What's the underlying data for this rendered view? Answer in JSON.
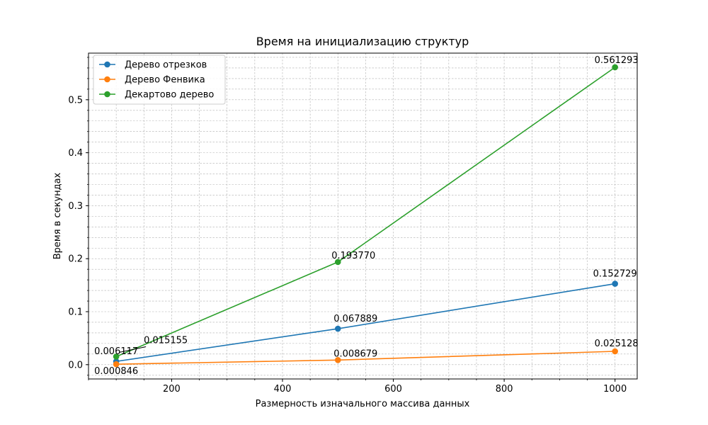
{
  "chart_data": {
    "type": "line",
    "title": "Время на инициализацию структур",
    "xlabel": "Размерность изначального массива данных",
    "ylabel": "Время в секундах",
    "x": [
      100,
      500,
      1000
    ],
    "xlim": [
      50,
      1040
    ],
    "ylim": [
      -0.027,
      0.588
    ],
    "xticks": [
      200,
      400,
      600,
      800,
      1000
    ],
    "xtick_labels": [
      "200",
      "400",
      "600",
      "800",
      "1000"
    ],
    "yticks": [
      0,
      0.1,
      0.2,
      0.3,
      0.4,
      0.5
    ],
    "ytick_labels": [
      "0.0",
      "0.1",
      "0.2",
      "0.3",
      "0.4",
      "0.5"
    ],
    "x_minor_step": 50,
    "y_minor_step": 0.02,
    "grid": true,
    "legend_position": "top-left",
    "series": [
      {
        "name": "Дерево отрезков",
        "color": "#1f77b4",
        "values": [
          0.006117,
          0.067889,
          0.152729
        ],
        "labels": [
          "0.006117",
          "0.067889",
          "0.152729"
        ]
      },
      {
        "name": "Дерево Фенвика",
        "color": "#ff7f0e",
        "values": [
          0.000846,
          0.008679,
          0.025128
        ],
        "labels": [
          "0.000846",
          "0.008679",
          "0.025128"
        ]
      },
      {
        "name": "Декартово дерево",
        "color": "#2ca02c",
        "values": [
          0.015155,
          0.19377,
          0.561293
        ],
        "labels": [
          "0.015155",
          "0.193770",
          "0.561293"
        ]
      }
    ]
  }
}
